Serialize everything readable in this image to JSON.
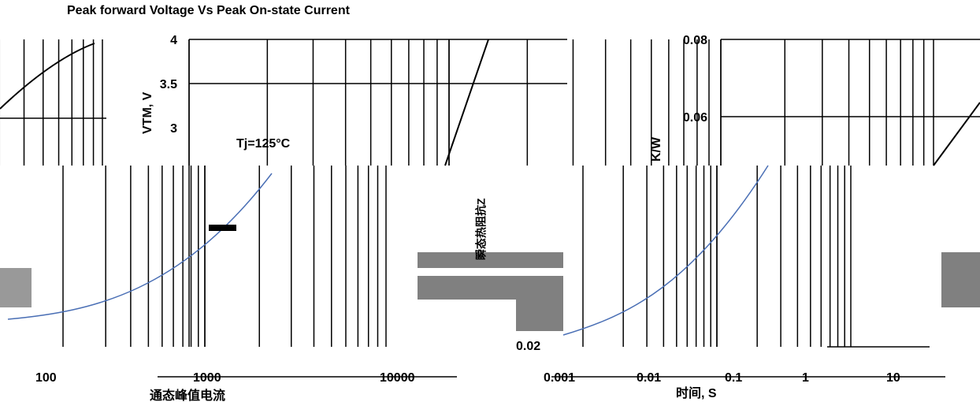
{
  "left_chart": {
    "title": "Peak forward Voltage Vs Peak On-state Current",
    "y_axis_label": "VTM, V",
    "annotation": "Tj=125°C",
    "y_tick_labels": [
      "4",
      "3.5",
      "3"
    ],
    "x_tick_labels": [
      "100",
      "1000",
      "10000"
    ],
    "x_axis_label": "通态峰值电流"
  },
  "middle_label": {
    "y_axis_label": "瞬态热阻抗Z",
    "tick_label": "0.02"
  },
  "right_chart": {
    "y_axis_label": "K/W",
    "y_tick_labels": [
      "0.08",
      "0.06"
    ],
    "x_tick_labels": [
      "0.001",
      "0.01",
      "0.1",
      "1",
      "10"
    ],
    "x_axis_label": "时间, S"
  }
}
